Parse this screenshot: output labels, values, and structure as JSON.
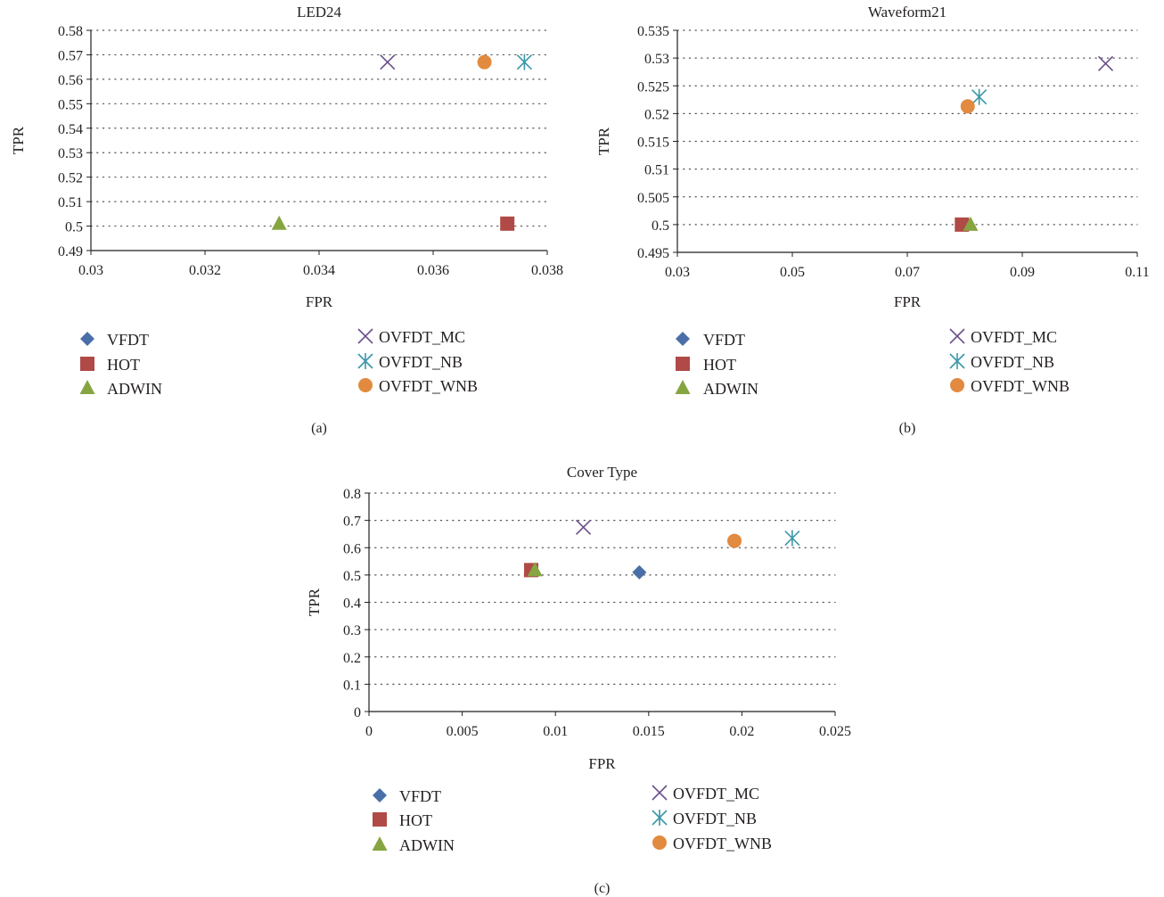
{
  "legend_entries": [
    "VFDT",
    "HOT",
    "ADWIN",
    "OVFDT_MC",
    "OVFDT_NB",
    "OVFDT_WNB"
  ],
  "colors": {
    "VFDT": "#4a6fa8",
    "HOT": "#b04a46",
    "ADWIN": "#86a541",
    "OVFDT_MC": "#6a4f8a",
    "OVFDT_NB": "#3a97a9",
    "OVFDT_WNB": "#e28a3f",
    "grid": "#555555",
    "axis": "#231f20"
  },
  "chart_data": [
    {
      "type": "scatter",
      "title": "LED24",
      "xlabel": "FPR",
      "ylabel": "TPR",
      "panel_label": "(a)",
      "xlim": [
        0.03,
        0.038
      ],
      "ylim": [
        0.49,
        0.58
      ],
      "xticks": [
        "0.03",
        "0.032",
        "0.034",
        "0.036",
        "0.038"
      ],
      "yticks": [
        "0.49",
        "0.5",
        "0.51",
        "0.52",
        "0.53",
        "0.54",
        "0.55",
        "0.56",
        "0.57",
        "0.58"
      ],
      "grid": "horizontal dotted",
      "legend": "bottom",
      "series": [
        {
          "name": "HOT",
          "marker": "square",
          "points": [
            [
              0.0373,
              0.501
            ]
          ]
        },
        {
          "name": "ADWIN",
          "marker": "triangle",
          "points": [
            [
              0.0333,
              0.501
            ]
          ]
        },
        {
          "name": "OVFDT_MC",
          "marker": "x",
          "points": [
            [
              0.0352,
              0.567
            ]
          ]
        },
        {
          "name": "OVFDT_NB",
          "marker": "asterisk",
          "points": [
            [
              0.0376,
              0.567
            ]
          ]
        },
        {
          "name": "OVFDT_WNB",
          "marker": "circle",
          "points": [
            [
              0.0369,
              0.567
            ]
          ]
        }
      ]
    },
    {
      "type": "scatter",
      "title": "Waveform21",
      "xlabel": "FPR",
      "ylabel": "TPR",
      "panel_label": "(b)",
      "xlim": [
        0.03,
        0.11
      ],
      "ylim": [
        0.495,
        0.535
      ],
      "xticks": [
        "0.03",
        "0.05",
        "0.07",
        "0.09",
        "0.11"
      ],
      "yticks": [
        "0.495",
        "0.5",
        "0.505",
        "0.51",
        "0.515",
        "0.52",
        "0.525",
        "0.53",
        "0.535"
      ],
      "grid": "horizontal dotted",
      "legend": "bottom",
      "series": [
        {
          "name": "HOT",
          "marker": "square",
          "points": [
            [
              0.0795,
              0.5
            ]
          ]
        },
        {
          "name": "ADWIN",
          "marker": "triangle",
          "points": [
            [
              0.081,
              0.5
            ]
          ]
        },
        {
          "name": "OVFDT_MC",
          "marker": "x",
          "points": [
            [
              0.1045,
              0.529
            ]
          ]
        },
        {
          "name": "OVFDT_NB",
          "marker": "asterisk",
          "points": [
            [
              0.0825,
              0.523
            ]
          ]
        },
        {
          "name": "OVFDT_WNB",
          "marker": "circle",
          "points": [
            [
              0.0805,
              0.5213
            ]
          ]
        }
      ]
    },
    {
      "type": "scatter",
      "title": "Cover Type",
      "xlabel": "FPR",
      "ylabel": "TPR",
      "panel_label": "(c)",
      "xlim": [
        0,
        0.025
      ],
      "ylim": [
        0,
        0.8
      ],
      "xticks": [
        "0",
        "0.005",
        "0.01",
        "0.015",
        "0.02",
        "0.025"
      ],
      "yticks": [
        "0",
        "0.1",
        "0.2",
        "0.3",
        "0.4",
        "0.5",
        "0.6",
        "0.7",
        "0.8"
      ],
      "grid": "horizontal dotted",
      "legend": "bottom",
      "series": [
        {
          "name": "VFDT",
          "marker": "diamond",
          "points": [
            [
              0.0145,
              0.51
            ]
          ]
        },
        {
          "name": "HOT",
          "marker": "square",
          "points": [
            [
              0.0087,
              0.518
            ]
          ]
        },
        {
          "name": "ADWIN",
          "marker": "triangle",
          "points": [
            [
              0.0089,
              0.518
            ]
          ]
        },
        {
          "name": "OVFDT_MC",
          "marker": "x",
          "points": [
            [
              0.0115,
              0.675
            ]
          ]
        },
        {
          "name": "OVFDT_NB",
          "marker": "asterisk",
          "points": [
            [
              0.0227,
              0.635
            ]
          ]
        },
        {
          "name": "OVFDT_WNB",
          "marker": "circle",
          "points": [
            [
              0.0196,
              0.625
            ]
          ]
        }
      ]
    }
  ]
}
